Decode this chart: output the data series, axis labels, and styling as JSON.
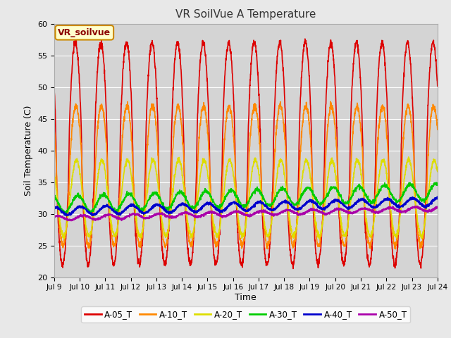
{
  "title": "VR SoilVue A Temperature",
  "xlabel": "Time",
  "ylabel": "Soil Temperature (C)",
  "ylim": [
    20,
    60
  ],
  "background_color": "#e8e8e8",
  "plot_bg_color": "#d4d4d4",
  "xtick_labels": [
    "Jul 9",
    "Jul 10",
    "Jul 11",
    "Jul 12",
    "Jul 13",
    "Jul 14",
    "Jul 15",
    "Jul 16",
    "Jul 17",
    "Jul 18",
    "Jul 19",
    "Jul 20",
    "Jul 21",
    "Jul 22",
    "Jul 23",
    "Jul 24"
  ],
  "series_names": [
    "A-05_T",
    "A-10_T",
    "A-20_T",
    "A-30_T",
    "A-40_T",
    "A-50_T"
  ],
  "series_colors": [
    "#dd0000",
    "#ff8800",
    "#dddd00",
    "#00cc00",
    "#0000cc",
    "#aa00aa"
  ],
  "series_lw": [
    1.2,
    1.2,
    1.2,
    1.2,
    1.5,
    1.5
  ],
  "annotation_text": "VR_soilvue",
  "annotation_bg": "#ffffcc",
  "annotation_border": "#cc8800",
  "yticks": [
    20,
    25,
    30,
    35,
    40,
    45,
    50,
    55,
    60
  ]
}
